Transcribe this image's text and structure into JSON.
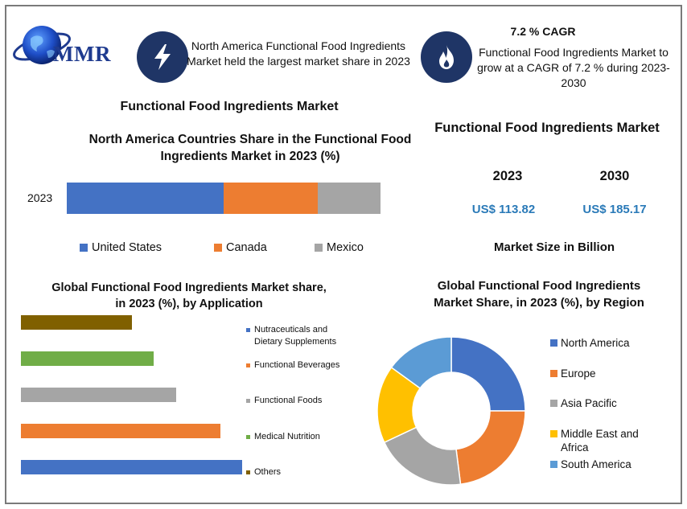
{
  "brand": {
    "logo_text": "MMR"
  },
  "info": {
    "left_text": "North America Functional Food Ingredients Market held the largest market share in 2023",
    "cagr_title": "7.2 % CAGR",
    "right_text": "Functional Food Ingredients Market to grow at a CAGR of 7.2 % during 2023-2030"
  },
  "colors": {
    "blue": "#4472c4",
    "orange": "#ed7d31",
    "gray": "#a5a5a5",
    "yellow": "#ffc000",
    "lightblue": "#5b9bd5",
    "olive": "#806000",
    "green": "#70ad47",
    "navy": "#1f3566"
  },
  "icons": {
    "left": "lightning-bolt-icon",
    "right": "flame-icon"
  },
  "chart_data": [
    {
      "type": "bar",
      "subtype": "stacked-horizontal",
      "title": "North America Countries Share in the Functional Food Ingredients  Market in 2023 (%)",
      "categories": [
        "2023"
      ],
      "series": [
        {
          "name": "United States",
          "values": [
            50
          ],
          "color": "#4472c4"
        },
        {
          "name": "Canada",
          "values": [
            30
          ],
          "color": "#ed7d31"
        },
        {
          "name": "Mexico",
          "values": [
            20
          ],
          "color": "#a5a5a5"
        }
      ],
      "legend": "bottom"
    },
    {
      "type": "table",
      "heading": "Functional Food Ingredients Market",
      "columns": [
        "2023",
        "2030"
      ],
      "values": [
        "US$ 113.82",
        "US$ 185.17"
      ],
      "footer": "Market Size in Billion"
    },
    {
      "type": "bar",
      "subtype": "horizontal",
      "title": "Global Functional Food Ingredients Market share, in 2023 (%), by Application",
      "categories": [
        "Others",
        "Medical Nutrition",
        "Functional Foods",
        "Functional Beverages",
        "Nutraceuticals and Dietary Supplements"
      ],
      "values": [
        30,
        27,
        21,
        18,
        15
      ],
      "colors": [
        "#4472c4",
        "#ed7d31",
        "#a5a5a5",
        "#70ad47",
        "#806000"
      ],
      "legend_labels": [
        "Nutraceuticals and Dietary Supplements",
        "Functional Beverages",
        "Functional Foods",
        "Medical Nutrition",
        "Others"
      ],
      "legend_colors": [
        "#4472c4",
        "#ed7d31",
        "#a5a5a5",
        "#70ad47",
        "#806000"
      ],
      "legend": "right"
    },
    {
      "type": "pie",
      "subtype": "donut",
      "title": "Global Functional Food Ingredients Market Share, in 2023 (%), by Region",
      "labels": [
        "North America",
        "Europe",
        "Asia Pacific",
        "Middle East and Africa",
        "South America"
      ],
      "values": [
        25,
        23,
        20,
        17,
        15
      ],
      "colors": [
        "#4472c4",
        "#ed7d31",
        "#a5a5a5",
        "#ffc000",
        "#5b9bd5"
      ],
      "legend": "right"
    }
  ],
  "page": {
    "market_title": "Functional Food Ingredients Market"
  }
}
